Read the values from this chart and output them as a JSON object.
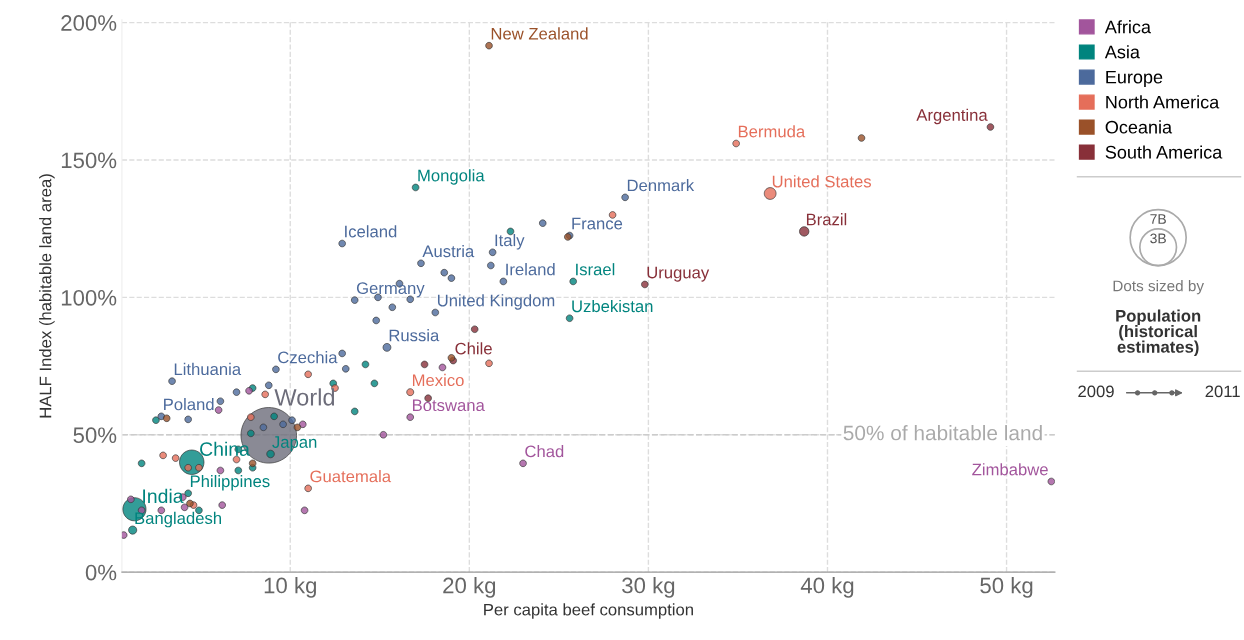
{
  "chart_data": {
    "type": "bubble",
    "xlabel": "Per capita beef consumption",
    "ylabel": "HALF Index (habitable land area)",
    "xlim": [
      0.6,
      52.7
    ],
    "ylim": [
      0,
      201
    ],
    "xticks": [
      {
        "value": 10,
        "label": "10 kg"
      },
      {
        "value": 20,
        "label": "20 kg"
      },
      {
        "value": 30,
        "label": "30 kg"
      },
      {
        "value": 40,
        "label": "40 kg"
      },
      {
        "value": 50,
        "label": "50 kg"
      }
    ],
    "yticks": [
      {
        "value": 0,
        "label": "0%"
      },
      {
        "value": 50,
        "label": "50%"
      },
      {
        "value": 100,
        "label": "100%"
      },
      {
        "value": 150,
        "label": "150%"
      },
      {
        "value": 200,
        "label": "200%"
      }
    ],
    "grid": true,
    "legend": "right",
    "marker": "circle",
    "size_legend": [
      {
        "value": 7,
        "label": "7B"
      },
      {
        "value": 3,
        "label": "3B"
      }
    ],
    "ref_lines": [
      {
        "axis": "y",
        "value": 50,
        "label": "50% of habitable land",
        "color": "#cccccc",
        "line_style": "dashed"
      }
    ],
    "series": [
      {
        "name": "Africa",
        "color": "#a2559c",
        "x": [
          15.2,
          16.7,
          23.0,
          52.5,
          10.8,
          0.7,
          6.0,
          7.7,
          18.5,
          10.7,
          6.1,
          4.0,
          6.2,
          4.1,
          2.8,
          1.7,
          1.1
        ],
        "values": [
          50,
          56.4,
          39.6,
          33,
          22.5,
          13.5,
          59,
          66,
          74.5,
          53.8,
          37,
          27.3,
          24.4,
          23.6,
          22.5,
          22.5,
          26.5
        ],
        "sizes": [
          0.1,
          0.1,
          0.1,
          0.1,
          0.1,
          0.1,
          0.1,
          0.1,
          0.1,
          0.1,
          0.1,
          0.1,
          0.1,
          0.1,
          0.1,
          0.1,
          0.1
        ]
      },
      {
        "name": "Asia",
        "color": "#00847e",
        "x": [
          17.0,
          25.8,
          25.6,
          4.5,
          8.9,
          1.3,
          1.2,
          4.3,
          22.3,
          2.5,
          7.9,
          14.2,
          14.7,
          12.4,
          13.6,
          1.7,
          7.8,
          9.1,
          7.1,
          7.9,
          7.1,
          4.9
        ],
        "values": [
          140,
          105.8,
          92.4,
          40,
          43,
          22.9,
          15.3,
          28.7,
          124,
          55.3,
          67,
          75.6,
          68.7,
          68.7,
          58.5,
          39.6,
          50.5,
          56.7,
          44.7,
          38,
          37,
          22.5
        ],
        "sizes": [
          0.1,
          0.1,
          0.1,
          1.34,
          0.13,
          1.2,
          0.15,
          0.1,
          0.1,
          0.1,
          0.1,
          0.1,
          0.1,
          0.1,
          0.1,
          0.1,
          0.1,
          0.1,
          0.1,
          0.1,
          0.1,
          0.1
        ]
      },
      {
        "name": "Europe",
        "color": "#4c6a9c",
        "x": [
          28.7,
          25.6,
          21.3,
          17.3,
          21.9,
          18.1,
          12.9,
          13.6,
          15.4,
          9.2,
          3.4,
          2.8,
          24.1,
          21.2,
          18.6,
          19.0,
          15.7,
          14.8,
          16.1,
          16.7,
          14.9,
          4.3,
          6.1,
          7.0,
          8.8,
          12.9,
          13.1,
          8.5,
          9.6,
          10.1
        ],
        "values": [
          136.4,
          122.5,
          116.4,
          112.4,
          105.8,
          94.5,
          119.6,
          99,
          81.8,
          73.8,
          69.5,
          56.7,
          127,
          111.6,
          109,
          107,
          96.4,
          91.6,
          105,
          99.3,
          100,
          55.6,
          62.2,
          65.5,
          68,
          79.6,
          74,
          52.7,
          53.8,
          55.3
        ],
        "sizes": [
          0.1,
          0.1,
          0.1,
          0.1,
          0.1,
          0.1,
          0.1,
          0.1,
          0.14,
          0.1,
          0.1,
          0.1,
          0.1,
          0.1,
          0.1,
          0.1,
          0.1,
          0.1,
          0.1,
          0.1,
          0.1,
          0.1,
          0.1,
          0.1,
          0.1,
          0.1,
          0.1,
          0.1,
          0.1,
          0.1
        ]
      },
      {
        "name": "North America",
        "color": "#e56e5a",
        "x": [
          34.9,
          36.8,
          16.7,
          11.0,
          28.0,
          21.1,
          8.6,
          11.0,
          12.5,
          2.9,
          3.6,
          4.3,
          4.9,
          7.0,
          7.8,
          4.6
        ],
        "values": [
          156,
          137.8,
          65.5,
          30.5,
          130,
          76,
          64.7,
          72,
          67,
          42.5,
          41.5,
          38,
          38,
          41,
          56.4,
          24.4
        ],
        "sizes": [
          0.1,
          0.31,
          0.11,
          0.1,
          0.1,
          0.1,
          0.1,
          0.1,
          0.1,
          0.1,
          0.1,
          0.1,
          0.1,
          0.1,
          0.1,
          0.1
        ]
      },
      {
        "name": "Oceania",
        "color": "#9a5129",
        "x": [
          21.1,
          41.9,
          25.5,
          19.0,
          3.1,
          10.4,
          7.9,
          4.4
        ],
        "values": [
          191.6,
          158,
          122,
          78,
          56,
          52.7,
          39.6,
          25
        ],
        "sizes": [
          0.1,
          0.1,
          0.1,
          0.1,
          0.1,
          0.1,
          0.1,
          0.1
        ]
      },
      {
        "name": "South America",
        "color": "#883039",
        "x": [
          49.1,
          38.7,
          29.8,
          19.1,
          20.3,
          17.5,
          17.7
        ],
        "values": [
          162,
          124,
          104.7,
          77,
          88.4,
          75.6,
          63.3
        ],
        "sizes": [
          0.1,
          0.2,
          0.1,
          0.1,
          0.1,
          0.1,
          0.1
        ]
      },
      {
        "color": "#6d6d7a",
        "x": [
          8.8
        ],
        "values": [
          49.8
        ],
        "sizes": [
          6.9
        ]
      }
    ],
    "annotations": [
      {
        "text": "New Zealand",
        "x": 21.1,
        "y": 191.6
      },
      {
        "text": "Bermuda",
        "x": 34.9,
        "y": 156
      },
      {
        "text": "Argentina",
        "x": 49.1,
        "y": 162
      },
      {
        "text": "United States",
        "x": 36.8,
        "y": 137.8
      },
      {
        "text": "Brazil",
        "x": 38.7,
        "y": 124
      },
      {
        "text": "Zimbabwe",
        "x": 52.5,
        "y": 33
      },
      {
        "text": "Mongolia",
        "x": 17.0,
        "y": 140
      },
      {
        "text": "Denmark",
        "x": 28.7,
        "y": 136.4
      },
      {
        "text": "France",
        "x": 25.6,
        "y": 122.5
      },
      {
        "text": "Italy",
        "x": 21.3,
        "y": 116.4
      },
      {
        "text": "Austria",
        "x": 17.3,
        "y": 112.4
      },
      {
        "text": "Ireland",
        "x": 21.9,
        "y": 105.8
      },
      {
        "text": "Israel",
        "x": 25.8,
        "y": 105.8
      },
      {
        "text": "Uruguay",
        "x": 29.8,
        "y": 104.7
      },
      {
        "text": "United Kingdom",
        "x": 18.1,
        "y": 94.5
      },
      {
        "text": "Uzbekistan",
        "x": 25.6,
        "y": 92.4
      },
      {
        "text": "Iceland",
        "x": 12.9,
        "y": 119.6
      },
      {
        "text": "Germany",
        "x": 13.6,
        "y": 99
      },
      {
        "text": "Russia",
        "x": 15.4,
        "y": 81.8
      },
      {
        "text": "Chile",
        "x": 19.1,
        "y": 77
      },
      {
        "text": "Mexico",
        "x": 16.7,
        "y": 65.5
      },
      {
        "text": "Botswana",
        "x": 16.7,
        "y": 56.4
      },
      {
        "text": "Chad",
        "x": 23.0,
        "y": 39.6
      },
      {
        "text": "Czechia",
        "x": 9.2,
        "y": 73.8
      },
      {
        "text": "Lithuania",
        "x": 3.4,
        "y": 69.5
      },
      {
        "text": "Poland",
        "x": 2.8,
        "y": 56.7
      },
      {
        "text": "World",
        "x": 8.8,
        "y": 49.8
      },
      {
        "text": "China",
        "x": 4.5,
        "y": 40
      },
      {
        "text": "Japan",
        "x": 8.9,
        "y": 43
      },
      {
        "text": "Philippines",
        "x": 4.3,
        "y": 28.7
      },
      {
        "text": "Guatemala",
        "x": 11.0,
        "y": 30.5
      },
      {
        "text": "India",
        "x": 1.3,
        "y": 22.9
      },
      {
        "text": "Bangladesh",
        "x": 1.2,
        "y": 15.3
      },
      "Dots sized by",
      "Population\n(historical\nestimates)",
      "2009",
      "2011"
    ]
  }
}
